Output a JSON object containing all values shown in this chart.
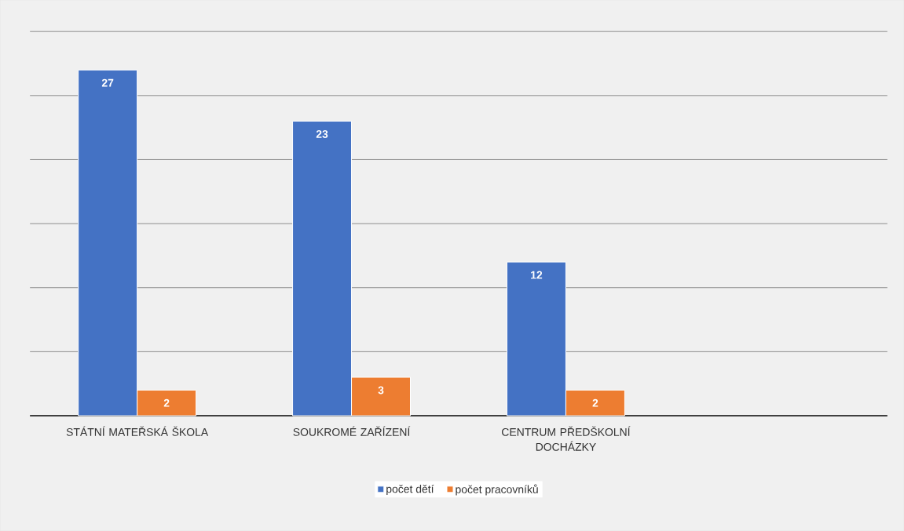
{
  "chart_data": {
    "type": "bar",
    "categories": [
      "STÁTNÍ MATEŘSKÁ ŠKOLA",
      "SOUKROMÉ ZAŘÍZENÍ",
      "CENTRUM PŘEDŠKOLNÍ DOCHÁZKY",
      null
    ],
    "series": [
      {
        "name": "počet dětí",
        "color": "#4472c4",
        "values": [
          27,
          23,
          12,
          null
        ]
      },
      {
        "name": "počet pracovníků",
        "color": "#ed7d31",
        "values": [
          2,
          3,
          2,
          null
        ]
      }
    ],
    "ylim": [
      0,
      30
    ],
    "tick_labels": "x",
    "grid": "y",
    "legend": "bottom",
    "data_labels": true
  }
}
